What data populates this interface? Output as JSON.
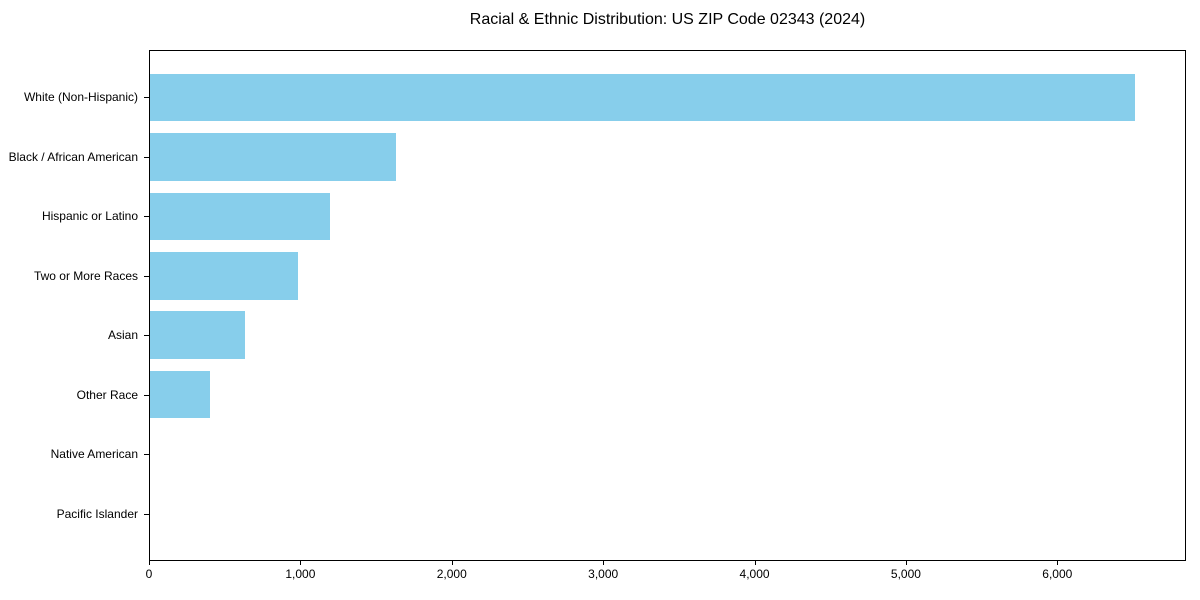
{
  "chart_data": {
    "type": "bar",
    "orientation": "horizontal",
    "title": "Racial & Ethnic Distribution: US ZIP Code 02343 (2024)",
    "categories": [
      "White (Non-Hispanic)",
      "Black / African American",
      "Hispanic or Latino",
      "Two or More Races",
      "Asian",
      "Other Race",
      "Native American",
      "Pacific Islander"
    ],
    "values": [
      6520,
      1630,
      1190,
      980,
      630,
      400,
      0,
      0
    ],
    "xlabel": "",
    "ylabel": "",
    "xlim": [
      0,
      6850
    ],
    "xticks": [
      0,
      1000,
      2000,
      3000,
      4000,
      5000,
      6000
    ],
    "xtick_labels": [
      "0",
      "1,000",
      "2,000",
      "3,000",
      "4,000",
      "5,000",
      "6,000"
    ],
    "bar_color": "#87CEEB",
    "background_color": "#FFFFFF",
    "spine_color": "#000000",
    "text_color": "#000000",
    "grid": false,
    "legend": false
  }
}
